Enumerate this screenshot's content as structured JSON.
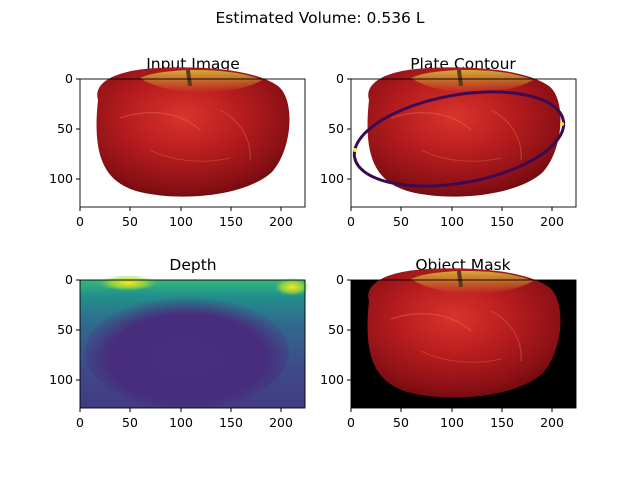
{
  "figure": {
    "suptitle": "Estimated Volume: 0.536 L",
    "colors": {
      "apple_red": "#b81d1e",
      "apple_dark": "#6e0a0e",
      "apple_stem_yellow": "#c8b02a",
      "contour": "#3b0a52",
      "mask_bg": "#000000",
      "depth_low": "#440154",
      "depth_mid": "#3b528b",
      "depth_teal": "#21918c",
      "depth_high": "#fde725"
    }
  },
  "chart_data": [
    {
      "type": "image",
      "title": "Input Image",
      "xticks": [
        0,
        50,
        100,
        150,
        200
      ],
      "yticks": [
        0,
        50,
        100
      ],
      "xlim": [
        0,
        224
      ],
      "ylim": [
        128,
        0
      ],
      "content": "apple photo on white background"
    },
    {
      "type": "image",
      "title": "Plate Contour",
      "xticks": [
        0,
        50,
        100,
        150,
        200
      ],
      "yticks": [
        0,
        50,
        100
      ],
      "xlim": [
        0,
        224
      ],
      "ylim": [
        128,
        0
      ],
      "contour_ellipse": {
        "cx": 107,
        "cy": 61,
        "rx": 105,
        "ry": 46,
        "rotation_deg": -10
      }
    },
    {
      "type": "heatmap",
      "title": "Depth",
      "colormap": "viridis",
      "xticks": [
        0,
        50,
        100,
        150,
        200
      ],
      "yticks": [
        0,
        50,
        100
      ],
      "xlim": [
        0,
        224
      ],
      "ylim": [
        128,
        0
      ]
    },
    {
      "type": "image",
      "title": "Object Mask",
      "xticks": [
        0,
        50,
        100,
        150,
        200
      ],
      "yticks": [
        0,
        50,
        100
      ],
      "xlim": [
        0,
        224
      ],
      "ylim": [
        128,
        0
      ],
      "content": "apple on black background"
    }
  ]
}
